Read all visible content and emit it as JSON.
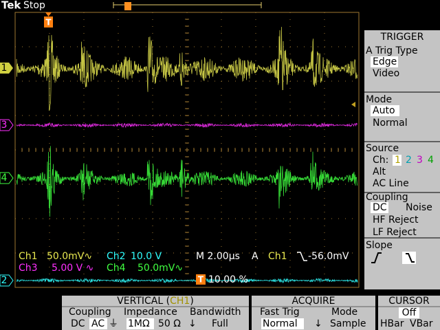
{
  "status": {
    "brand": "Tek",
    "state": "Stop"
  },
  "markers": {
    "trigger": "T",
    "ch1": "1",
    "ch3": "3",
    "ch4": "4",
    "ch2": "2",
    "trigger_position_marker": "T"
  },
  "readout": {
    "ch1_label": "Ch1",
    "ch1_scale": "50.0mV∿",
    "ch2_label": "Ch2",
    "ch2_scale": "10.0 V",
    "ch3_label": "Ch3",
    "ch3_scale": "5.00 V ∿",
    "ch4_label": "Ch4",
    "ch4_scale": "50.0mV∿",
    "timebase": "M 2.00µs",
    "trigger_mode": "A",
    "trigger_source": "Ch1",
    "trigger_level": "-56.0mV",
    "trigger_position": "10.00 %"
  },
  "side_menu": {
    "title": "TRIGGER",
    "type_label": "A Trig Type",
    "type_edge": "Edge",
    "type_video": "Video",
    "mode_label": "Mode",
    "mode_auto": "Auto",
    "mode_normal": "Normal",
    "source_label": "Source",
    "source_ch": "Ch:",
    "source_1": "1",
    "source_2": "2",
    "source_3": "3",
    "source_4": "4",
    "source_alt": "Alt",
    "source_acline": "AC Line",
    "coupling_label": "Coupling",
    "coupling_dc": "DC",
    "coupling_noise": "Noise",
    "coupling_hf": "HF Reject",
    "coupling_lf": "LF Reject",
    "slope_label": "Slope"
  },
  "bottom_menu": {
    "vertical_title": "VERTICAL (",
    "vertical_channel": "CH1",
    "vertical_close": ")",
    "coupling_label": "Coupling",
    "coupling_dc": "DC",
    "coupling_ac": "AC",
    "coupling_gnd": "⏚",
    "impedance_label": "Impedance",
    "impedance_1m": "1MΩ",
    "impedance_50": "50 Ω",
    "bandwidth_label": "Bandwidth",
    "bandwidth_arrow": "↓",
    "bandwidth_full": "Full",
    "acquire_title": "ACQUIRE",
    "fasttrig_label": "Fast Trig",
    "fasttrig_normal": "Normal",
    "acquire_arrow": "↓",
    "mode_label": "Mode",
    "mode_sample": "Sample",
    "cursor_title": "CURSOR",
    "cursor_off": "Off",
    "cursor_hbar": "HBar",
    "cursor_vbar": "VBar"
  }
}
